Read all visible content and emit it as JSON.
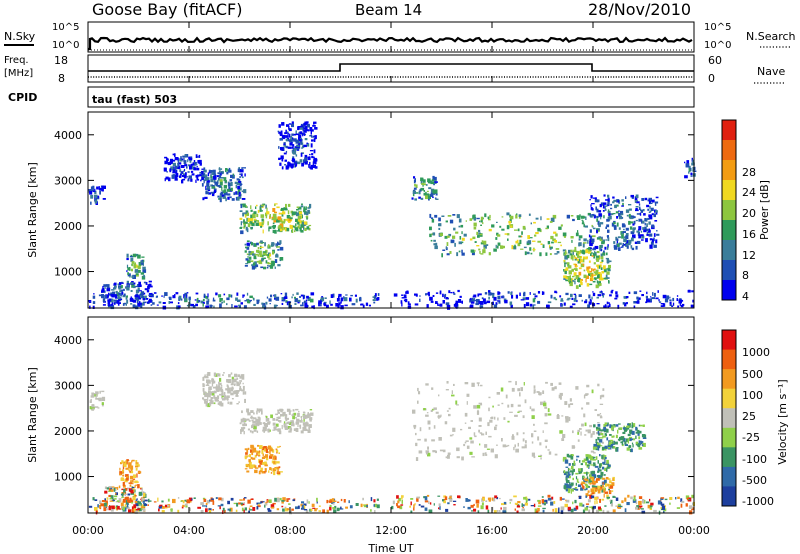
{
  "header": {
    "station": "Goose Bay (fitACF)",
    "beam": "Beam 14",
    "date": "28/Nov/2010"
  },
  "summary_strips": {
    "nsky_label": "N.Sky",
    "nsky_ticks": [
      "10^5",
      "10^0"
    ],
    "nsearch_label": "N.Search",
    "nsearch_ticks": [
      "10^5",
      "10^0"
    ],
    "freq_label": "Freq.",
    "freq_unit": "[MHz]",
    "freq_ticks": [
      "18",
      "8"
    ],
    "nave_label": "Nave",
    "nave_ticks": [
      "60",
      "0"
    ],
    "cpid_label": "CPID",
    "cpid_value": "tau (fast) 503"
  },
  "x_axis": {
    "label": "Time UT",
    "ticks": [
      "00:00",
      "04:00",
      "08:00",
      "12:00",
      "16:00",
      "20:00",
      "00:00"
    ],
    "hours": [
      0,
      4,
      8,
      12,
      16,
      20,
      24
    ]
  },
  "chart_data": [
    {
      "type": "heatmap",
      "panel": "power",
      "xlabel": "Time UT",
      "ylabel": "Slant Range [km]",
      "xlim": [
        0,
        24
      ],
      "ylim": [
        200,
        4500
      ],
      "y_ticks": [
        "4000",
        "3000",
        "2000",
        "1000"
      ],
      "y_tick_values": [
        4000,
        3000,
        2000,
        1000
      ],
      "colorbar_label": "Power [dB]",
      "colorbar_ticks": [
        "28",
        "24",
        "20",
        "16",
        "12",
        "8",
        "4"
      ],
      "colorbar_colors": [
        "#0000ee",
        "#1f4fb4",
        "#3a7d9a",
        "#2f9a5a",
        "#8dc63f",
        "#f0d820",
        "#f39c12",
        "#ee6a10",
        "#e02010"
      ],
      "regions": [
        {
          "t": [
            0.0,
            0.6
          ],
          "r": [
            2500,
            2900
          ],
          "level": 0.25
        },
        {
          "t": [
            0.5,
            2.5
          ],
          "r": [
            300,
            800
          ],
          "level": 0.3
        },
        {
          "t": [
            1.5,
            2.2
          ],
          "r": [
            900,
            1400
          ],
          "level": 0.45
        },
        {
          "t": [
            3.0,
            4.5
          ],
          "r": [
            3000,
            3600
          ],
          "level": 0.2
        },
        {
          "t": [
            4.5,
            6.2
          ],
          "r": [
            2600,
            3300
          ],
          "level": 0.35
        },
        {
          "t": [
            6.0,
            8.8
          ],
          "r": [
            1900,
            2500
          ],
          "level": 0.62
        },
        {
          "t": [
            6.2,
            7.6
          ],
          "r": [
            1100,
            1700
          ],
          "level": 0.5
        },
        {
          "t": [
            7.5,
            9.0
          ],
          "r": [
            3300,
            4300
          ],
          "level": 0.2
        },
        {
          "t": [
            0.0,
            11.5
          ],
          "r": [
            250,
            550
          ],
          "level": 0.3
        },
        {
          "t": [
            12.8,
            13.8
          ],
          "r": [
            2600,
            3100
          ],
          "level": 0.45
        },
        {
          "t": [
            13.5,
            20.5
          ],
          "r": [
            1400,
            2300
          ],
          "level": 0.55
        },
        {
          "t": [
            18.8,
            20.6
          ],
          "r": [
            700,
            1500
          ],
          "level": 0.65
        },
        {
          "t": [
            19.8,
            22.5
          ],
          "r": [
            1500,
            2700
          ],
          "level": 0.3
        },
        {
          "t": [
            23.6,
            24.0
          ],
          "r": [
            3100,
            3500
          ],
          "level": 0.3
        },
        {
          "t": [
            12.0,
            24.0
          ],
          "r": [
            250,
            600
          ],
          "level": 0.2
        }
      ]
    },
    {
      "type": "heatmap",
      "panel": "velocity",
      "xlabel": "Time UT",
      "ylabel": "Slant Range [km]",
      "xlim": [
        0,
        24
      ],
      "ylim": [
        200,
        4500
      ],
      "y_ticks": [
        "4000",
        "3000",
        "2000",
        "1000"
      ],
      "y_tick_values": [
        4000,
        3000,
        2000,
        1000
      ],
      "colorbar_label": "Velocity [m s⁻¹]",
      "colorbar_ticks": [
        "1000",
        "500",
        "100",
        "25",
        "-25",
        "-100",
        "-500",
        "-1000"
      ],
      "colorbar_colors": [
        "#1d3f9e",
        "#2f6aa8",
        "#3a9463",
        "#8fd04a",
        "#c0c0b8",
        "#f2d23a",
        "#f29a20",
        "#ee6010",
        "#e01010"
      ],
      "regions": [
        {
          "t": [
            0.0,
            0.6
          ],
          "r": [
            2500,
            2900
          ],
          "kind": "ground"
        },
        {
          "t": [
            1.2,
            2.0
          ],
          "r": [
            800,
            1400
          ],
          "kind": "neg"
        },
        {
          "t": [
            0.6,
            2.2
          ],
          "r": [
            300,
            800
          ],
          "kind": "mix"
        },
        {
          "t": [
            4.5,
            6.2
          ],
          "r": [
            2600,
            3300
          ],
          "kind": "ground"
        },
        {
          "t": [
            6.0,
            8.8
          ],
          "r": [
            2000,
            2500
          ],
          "kind": "ground"
        },
        {
          "t": [
            6.2,
            7.6
          ],
          "r": [
            1100,
            1700
          ],
          "kind": "neg"
        },
        {
          "t": [
            0.0,
            11.5
          ],
          "r": [
            250,
            550
          ],
          "kind": "mix"
        },
        {
          "t": [
            12.8,
            20.5
          ],
          "r": [
            1400,
            3100
          ],
          "kind": "ground"
        },
        {
          "t": [
            18.8,
            20.6
          ],
          "r": [
            700,
            1500
          ],
          "kind": "pos"
        },
        {
          "t": [
            19.5,
            20.8
          ],
          "r": [
            600,
            1000
          ],
          "kind": "neg"
        },
        {
          "t": [
            20.0,
            22.0
          ],
          "r": [
            1600,
            2200
          ],
          "kind": "pos"
        },
        {
          "t": [
            12.0,
            24.0
          ],
          "r": [
            250,
            600
          ],
          "kind": "mix"
        }
      ]
    }
  ]
}
